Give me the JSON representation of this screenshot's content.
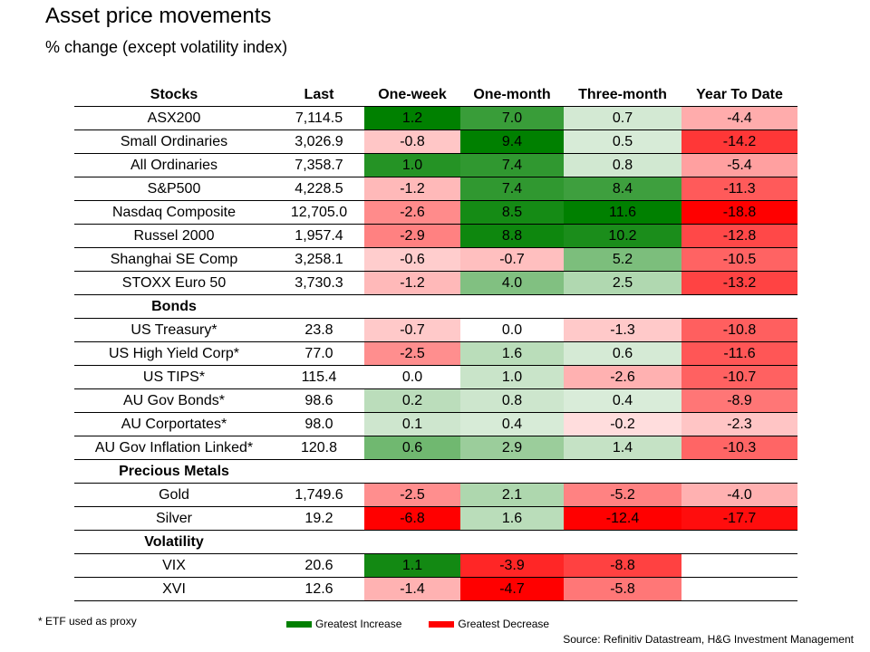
{
  "title": "Asset price movements",
  "subtitle": "% change (except volatility index)",
  "chart_data": {
    "type": "table",
    "title": "Asset price movements",
    "subtitle": "% change (except volatility index)",
    "columns": [
      "Last",
      "One-week",
      "One-month",
      "Three-month",
      "Year To Date"
    ],
    "sections": [
      {
        "name": "Stocks",
        "rows": [
          {
            "label": "ASX200",
            "last": "7,114.5",
            "values": [
              1.2,
              7.0,
              0.7,
              -4.4
            ]
          },
          {
            "label": "Small Ordinaries",
            "last": "3,026.9",
            "values": [
              -0.8,
              9.4,
              0.5,
              -14.2
            ]
          },
          {
            "label": "All Ordinaries",
            "last": "7,358.7",
            "values": [
              1.0,
              7.4,
              0.8,
              -5.4
            ]
          },
          {
            "label": "S&P500",
            "last": "4,228.5",
            "values": [
              -1.2,
              7.4,
              8.4,
              -11.3
            ]
          },
          {
            "label": "Nasdaq Composite",
            "last": "12,705.0",
            "values": [
              -2.6,
              8.5,
              11.6,
              -18.8
            ]
          },
          {
            "label": "Russel 2000",
            "last": "1,957.4",
            "values": [
              -2.9,
              8.8,
              10.2,
              -12.8
            ]
          },
          {
            "label": "Shanghai SE Comp",
            "last": "3,258.1",
            "values": [
              -0.6,
              -0.7,
              5.2,
              -10.5
            ]
          },
          {
            "label": "STOXX Euro 50",
            "last": "3,730.3",
            "values": [
              -1.2,
              4.0,
              2.5,
              -13.2
            ]
          }
        ]
      },
      {
        "name": "Bonds",
        "rows": [
          {
            "label": "US Treasury*",
            "last": "23.8",
            "values": [
              -0.7,
              0.0,
              -1.3,
              -10.8
            ]
          },
          {
            "label": "US High Yield Corp*",
            "last": "77.0",
            "values": [
              -2.5,
              1.6,
              0.6,
              -11.6
            ]
          },
          {
            "label": "US TIPS*",
            "last": "115.4",
            "values": [
              0.0,
              1.0,
              -2.6,
              -10.7
            ]
          },
          {
            "label": "AU Gov Bonds*",
            "last": "98.6",
            "values": [
              0.2,
              0.8,
              0.4,
              -8.9
            ]
          },
          {
            "label": "AU Corportates*",
            "last": "98.0",
            "values": [
              0.1,
              0.4,
              -0.2,
              -2.3
            ]
          },
          {
            "label": "AU Gov Inflation Linked*",
            "last": "120.8",
            "values": [
              0.6,
              2.9,
              1.4,
              -10.3
            ]
          }
        ]
      },
      {
        "name": "Precious Metals",
        "rows": [
          {
            "label": "Gold",
            "last": "1,749.6",
            "values": [
              -2.5,
              2.1,
              -5.2,
              -4.0
            ]
          },
          {
            "label": "Silver",
            "last": "19.2",
            "values": [
              -6.8,
              1.6,
              -12.4,
              -17.7
            ]
          }
        ]
      },
      {
        "name": "Volatility",
        "rows": [
          {
            "label": "VIX",
            "last": "20.6",
            "values": [
              1.1,
              -3.9,
              -8.8,
              null
            ]
          },
          {
            "label": "XVI",
            "last": "12.6",
            "values": [
              -1.4,
              -4.7,
              -5.8,
              null
            ]
          }
        ]
      }
    ]
  },
  "colors": {
    "increase": "#008000",
    "decrease": "#ff0000",
    "neutral": "#ffffff"
  },
  "footnote": "* ETF used as proxy",
  "legend": {
    "increase_label": "Greatest Increase",
    "decrease_label": "Greatest Decrease"
  },
  "source": "Source: Refinitiv Datastream, H&G Investment Management"
}
